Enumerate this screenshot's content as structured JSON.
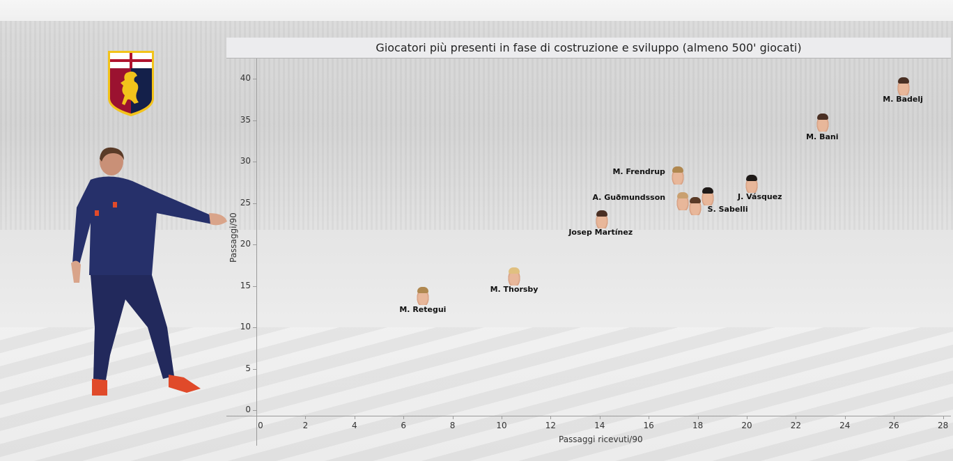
{
  "chart_data": {
    "type": "scatter",
    "title": "Giocatori più presenti in fase di costruzione e sviluppo (almeno 500' giocati)",
    "xlabel": "Passaggi ricevuti/90",
    "ylabel": "Passaggi/90",
    "xlim": [
      0,
      28
    ],
    "ylim": [
      0,
      42
    ],
    "xticks": [
      "0",
      "2",
      "4",
      "6",
      "8",
      "10",
      "12",
      "14",
      "16",
      "18",
      "20",
      "22",
      "24",
      "26",
      "28"
    ],
    "yticks": [
      "0",
      "5",
      "10",
      "15",
      "20",
      "25",
      "30",
      "35",
      "40"
    ],
    "grid": false,
    "legend": "none",
    "points": [
      {
        "label": "M. Badelj",
        "x": 26.4,
        "y": 39.1
      },
      {
        "label": "M. Bani",
        "x": 23.1,
        "y": 34.7
      },
      {
        "label": "M. Frendrup",
        "x": 17.2,
        "y": 28.3
      },
      {
        "label": "J. Vásquez",
        "x": 20.2,
        "y": 27.3
      },
      {
        "label": "A. Guðmundsson",
        "x": 17.4,
        "y": 25.2
      },
      {
        "label": "S. Sabelli",
        "x": 18.4,
        "y": 25.8
      },
      {
        "label": "",
        "x": 17.9,
        "y": 24.6
      },
      {
        "label": "Josep Martínez",
        "x": 14.1,
        "y": 23.0
      },
      {
        "label": "M. Thorsby",
        "x": 10.5,
        "y": 16.1
      },
      {
        "label": "M. Retegui",
        "x": 6.8,
        "y": 13.8
      }
    ]
  },
  "header": {
    "title": "Giocatori più presenti in fase di costruzione e sviluppo (almeno 500' giocati)"
  },
  "branding": {
    "crest_icon": "genoa-crest-icon",
    "coach_image": "coach-photo"
  },
  "colors": {
    "crest_red": "#9b1230",
    "crest_blue": "#14204a",
    "crest_gold": "#f2c31b",
    "title_bg": "#ececee"
  }
}
